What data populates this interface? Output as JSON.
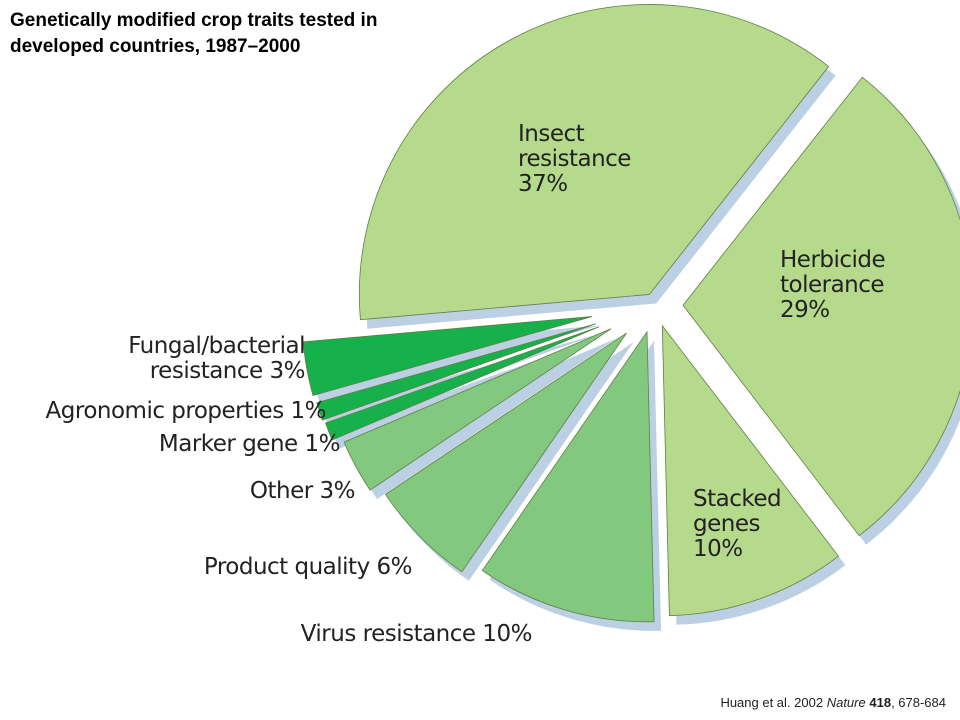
{
  "chart_data": {
    "type": "pie",
    "title": "Genetically modified crop traits tested in developed countries, 1987–2000",
    "categories": [
      "Insect resistance",
      "Herbicide tolerance",
      "Stacked genes",
      "Virus resistance",
      "Product quality",
      "Other",
      "Marker gene",
      "Agronomic properties",
      "Fungal/bacterial resistance"
    ],
    "values": [
      37,
      29,
      10,
      10,
      6,
      3,
      1,
      1,
      3
    ],
    "value_labels": [
      "37%",
      "29%",
      "10%",
      "10%",
      "6%",
      "3%",
      "1%",
      "1%",
      "3%"
    ],
    "colors": [
      "#b6da8c",
      "#b6da8c",
      "#b6da8c",
      "#83c87f",
      "#83c87f",
      "#83c87f",
      "#17b14c",
      "#17b14c",
      "#17b14c"
    ],
    "source": {
      "authors": "Huang et al. 2002",
      "journal": "Nature",
      "volume": "418",
      "pages": ", 678-684"
    }
  }
}
